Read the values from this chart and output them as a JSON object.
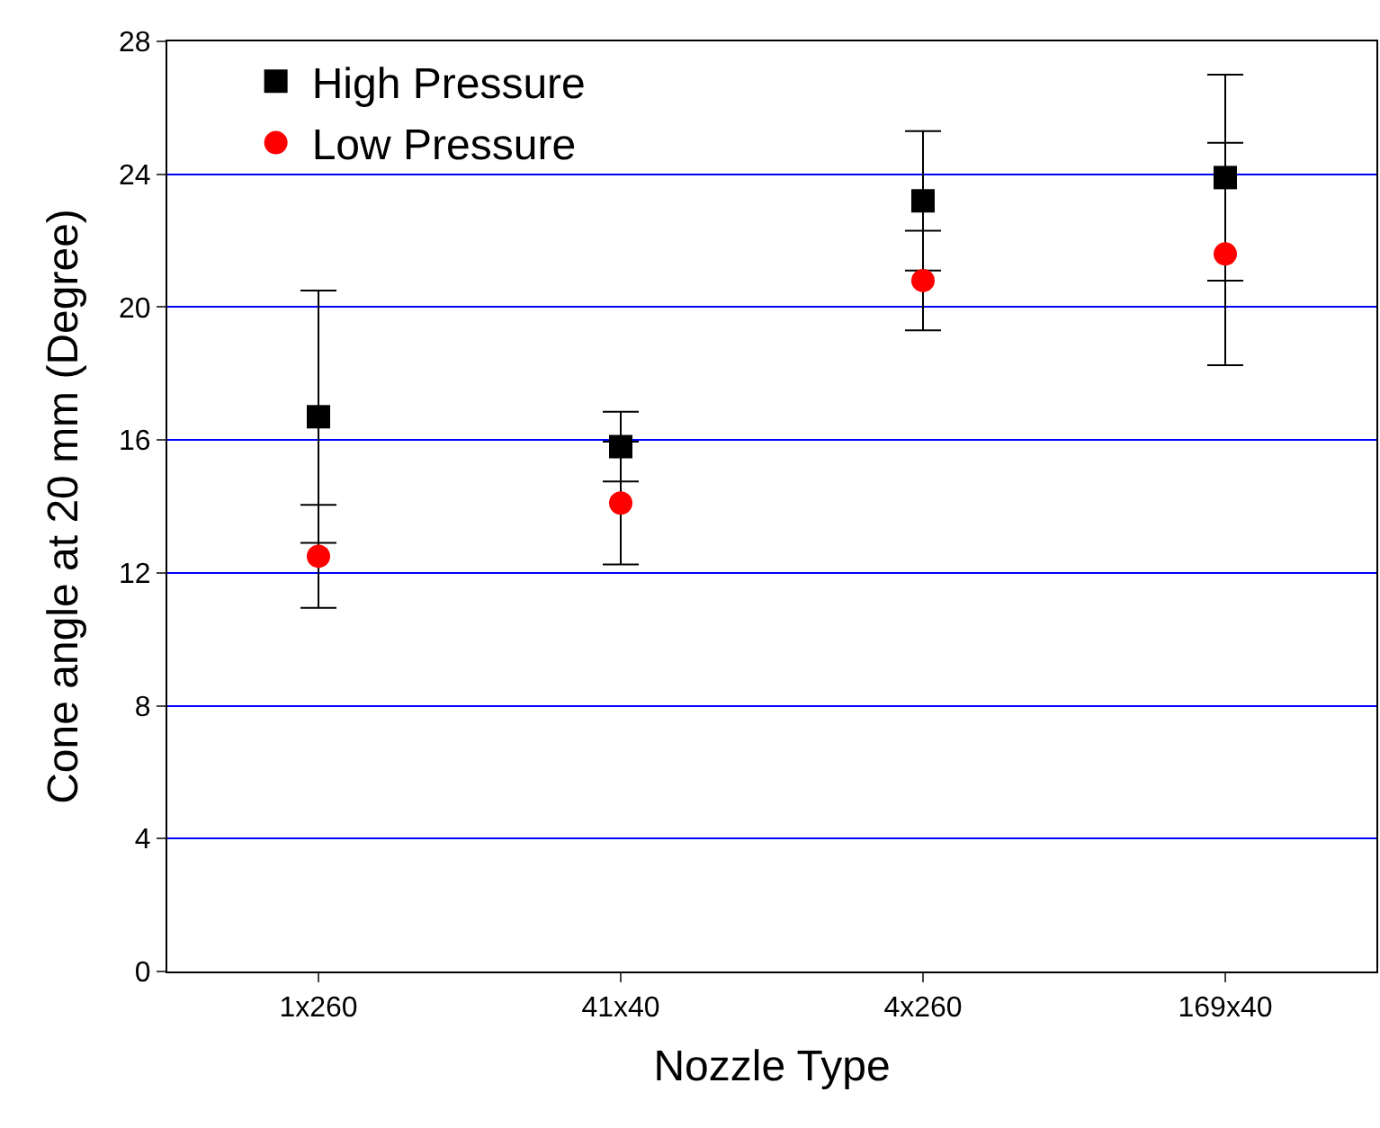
{
  "chart_data": {
    "type": "scatter",
    "xlabel": "Nozzle Type",
    "ylabel": "Cone angle at 20 mm (Degree)",
    "categories": [
      "1x260",
      "41x40",
      "4x260",
      "169x40"
    ],
    "series": [
      {
        "name": "High Pressure",
        "color": "#000000",
        "marker": "square",
        "values": [
          16.7,
          15.8,
          23.2,
          23.9
        ],
        "errors": [
          3.8,
          1.05,
          2.1,
          3.1
        ]
      },
      {
        "name": "Low Pressure",
        "color": "#ff0000",
        "marker": "circle",
        "values": [
          12.5,
          14.1,
          20.8,
          21.6
        ],
        "errors": [
          1.55,
          1.85,
          1.5,
          3.35
        ]
      }
    ],
    "ylim": [
      0,
      28
    ],
    "yticks": [
      0,
      4,
      8,
      12,
      16,
      20,
      24,
      28
    ],
    "grid": "y",
    "legend": "top left"
  }
}
